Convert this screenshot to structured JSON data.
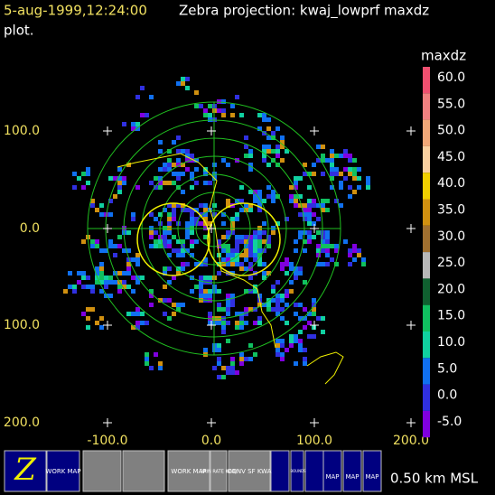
{
  "header": {
    "time": "5-aug-1999,12:24:00",
    "title": "Zebra projection: kwaj_lowprf maxdz",
    "title_cont": "plot."
  },
  "axes": {
    "x_labels": [
      "-100.0",
      "0.0",
      "100.0",
      "200.0"
    ],
    "y_labels": [
      "100.0",
      "0.0",
      "100.0",
      "200.0"
    ]
  },
  "colorbar": {
    "title": "maxdz",
    "labels": [
      "60.0",
      "55.0",
      "50.0",
      "45.0",
      "40.0",
      "35.0",
      "30.0",
      "25.0",
      "20.0",
      "15.0",
      "10.0",
      "5.0",
      "0.0",
      "-5.0"
    ],
    "colors": [
      "#f05070",
      "#f08080",
      "#f0a878",
      "#f8d0a0",
      "#f0d000",
      "#d09010",
      "#a07030",
      "#b8b8b8",
      "#106030",
      "#10c060",
      "#10d0a0",
      "#1070f0",
      "#3030e0",
      "#8000e0"
    ]
  },
  "toolbar": {
    "work_map": "WORK MAP",
    "rain": "RAIN RATE KWAJ",
    "conv": "CONV SF KWA",
    "bounds": "BOUNDS",
    "map": "MAP",
    "altitude": "0.50 km MSL"
  }
}
